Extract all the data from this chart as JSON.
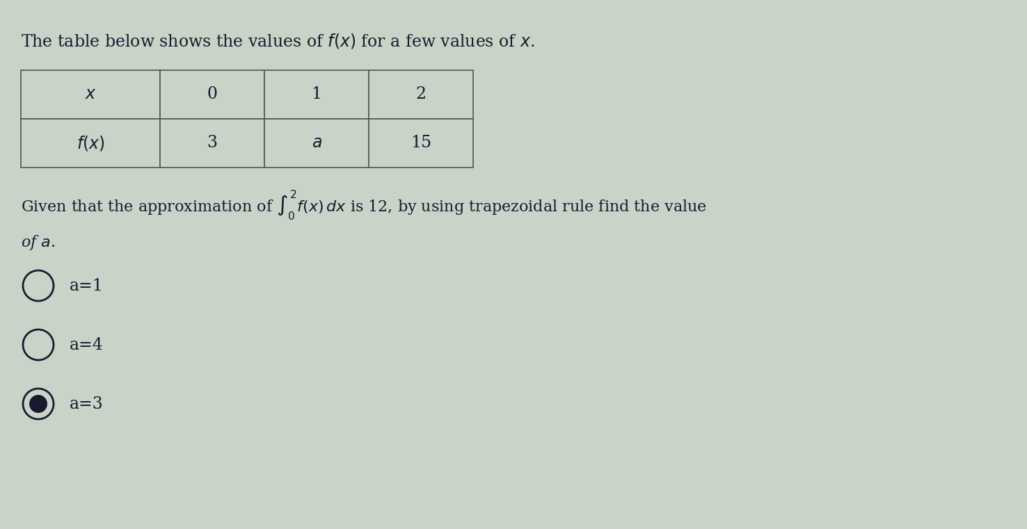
{
  "background_color": "#c8d4c8",
  "title_text": "The table below shows the values of $f(x)$ for a few values of $x$.",
  "title_fontsize": 17,
  "table_x_row": [
    "$x$",
    "0",
    "1",
    "2"
  ],
  "table_fx_row": [
    "$f(x)$",
    "3",
    "$a$",
    "15"
  ],
  "question_text1": "Given that the approximation of $\\int_0^2 f(x)\\,dx$ is 12, by using trapezoidal rule find the value",
  "question_text2": "of $a$.",
  "options": [
    "a=1",
    "a=4",
    "a=3"
  ],
  "selected_option": 2,
  "option_fontsize": 17,
  "text_color": "#1a1a2e",
  "table_border_color": "#555555",
  "table_bg": "#c8d4c8",
  "radio_color": "#1a1a2e",
  "selected_fill": "#1a1a2e"
}
